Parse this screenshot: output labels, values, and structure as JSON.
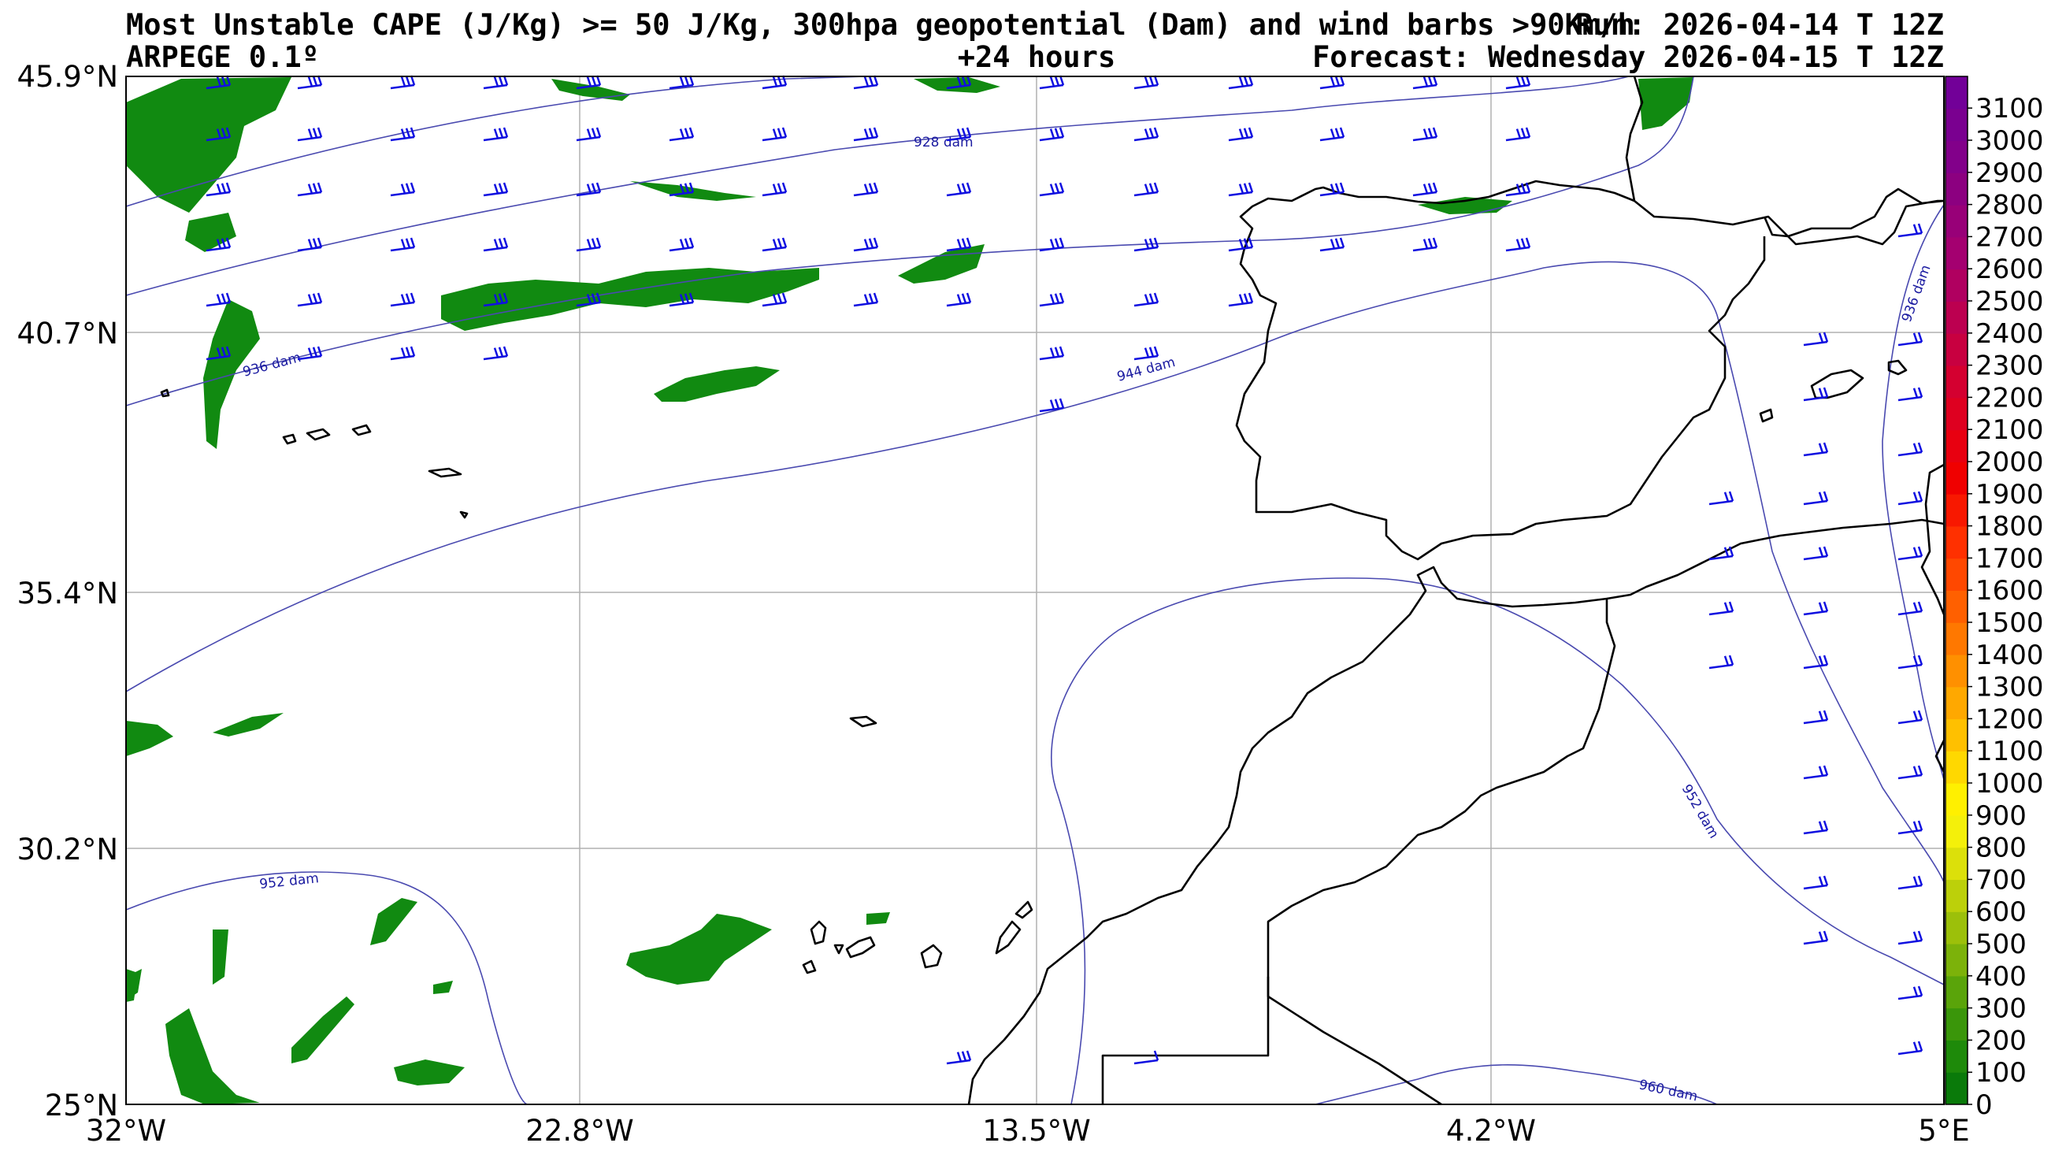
{
  "header": {
    "title_line1": "Most Unstable CAPE (J/Kg) >= 50 J/Kg, 300hpa geopotential (Dam) and wind barbs >90Km/h",
    "run": "Run: 2026-04-14 T 12Z",
    "model": "ARPEGE 0.1º",
    "lead": "+24 hours",
    "forecast": "Forecast: Wednesday 2026-04-15 T 12Z"
  },
  "axes": {
    "lon_ticks": [
      "32°W",
      "22.8°W",
      "13.5°W",
      "4.2°W",
      "5°E"
    ],
    "lat_ticks": [
      "45.9°N",
      "40.7°N",
      "35.4°N",
      "30.2°N",
      "25°N"
    ]
  },
  "contours": {
    "labels": [
      "928 dam",
      "936 dam",
      "944 dam",
      "936 dam",
      "952 dam",
      "952 dam",
      "960 dam"
    ]
  },
  "colorbar": {
    "ticks": [
      "3100",
      "3000",
      "2900",
      "2800",
      "2700",
      "2600",
      "2500",
      "2400",
      "2300",
      "2200",
      "2100",
      "2000",
      "1900",
      "1800",
      "1700",
      "1600",
      "1500",
      "1400",
      "1300",
      "1200",
      "1100",
      "1000",
      "900",
      "800",
      "700",
      "600",
      "500",
      "400",
      "300",
      "200",
      "100",
      "0"
    ],
    "colors": [
      "#0a7a0a",
      "#1e8a0a",
      "#3a960a",
      "#5aa40a",
      "#7cb20a",
      "#9cc00a",
      "#bcd00a",
      "#dce00a",
      "#f4f00a",
      "#fff000",
      "#ffd800",
      "#ffc000",
      "#ffa800",
      "#ff9000",
      "#ff7800",
      "#ff6000",
      "#ff4800",
      "#ff3000",
      "#f81800",
      "#f00000",
      "#e80010",
      "#de0020",
      "#d40030",
      "#c80040",
      "#bc0050",
      "#b00060",
      "#a40070",
      "#980078",
      "#8c0080",
      "#82008a",
      "#7a0090",
      "#720098"
    ]
  }
}
